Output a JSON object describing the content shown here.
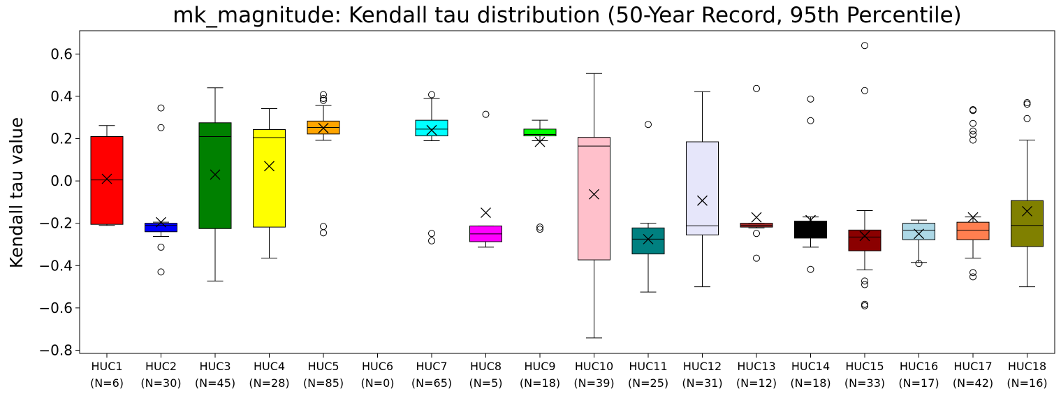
{
  "chart_data": {
    "type": "box",
    "title": "mk_magnitude: Kendall tau distribution (50-Year Record, 95th Percentile)",
    "xlabel": "",
    "ylabel": "Kendall tau value",
    "ylim": [
      -0.815,
      0.71
    ],
    "yticks": [
      -0.8,
      -0.6,
      -0.4,
      -0.2,
      0.0,
      0.2,
      0.4,
      0.6
    ],
    "ytick_labels": [
      "−0.8",
      "−0.6",
      "−0.4",
      "−0.2",
      "0.0",
      "0.2",
      "0.4",
      "0.6"
    ],
    "mean_marker": "×",
    "grid": false,
    "legend": "none",
    "categories": [
      "HUC1",
      "HUC2",
      "HUC3",
      "HUC4",
      "HUC5",
      "HUC6",
      "HUC7",
      "HUC8",
      "HUC9",
      "HUC10",
      "HUC11",
      "HUC12",
      "HUC13",
      "HUC14",
      "HUC15",
      "HUC16",
      "HUC17",
      "HUC18"
    ],
    "counts": [
      "(N=6)",
      "(N=30)",
      "(N=45)",
      "(N=28)",
      "(N=85)",
      "(N=0)",
      "(N=65)",
      "(N=5)",
      "(N=18)",
      "(N=39)",
      "(N=25)",
      "(N=31)",
      "(N=12)",
      "(N=18)",
      "(N=33)",
      "(N=17)",
      "(N=42)",
      "(N=16)"
    ],
    "boxes": [
      {
        "color": "#ff0000",
        "whislo": -0.21,
        "q1": -0.205,
        "med": 0.005,
        "q3": 0.21,
        "whishi": 0.262,
        "mean": 0.01,
        "fliers": []
      },
      {
        "color": "#0000ff",
        "whislo": -0.262,
        "q1": -0.24,
        "med": -0.21,
        "q3": -0.2,
        "whishi": -0.195,
        "mean": -0.195,
        "fliers": [
          0.345,
          0.252,
          -0.313,
          -0.43
        ]
      },
      {
        "color": "#008000",
        "whislo": -0.473,
        "q1": -0.225,
        "med": 0.21,
        "q3": 0.275,
        "whishi": 0.44,
        "mean": 0.03,
        "fliers": []
      },
      {
        "color": "#ffff00",
        "whislo": -0.365,
        "q1": -0.218,
        "med": 0.205,
        "q3": 0.243,
        "whishi": 0.342,
        "mean": 0.07,
        "fliers": []
      },
      {
        "color": "#ffa500",
        "whislo": 0.192,
        "q1": 0.222,
        "med": 0.253,
        "q3": 0.283,
        "whishi": 0.357,
        "mean": 0.25,
        "fliers": [
          0.408,
          0.39,
          0.381,
          -0.215,
          -0.245
        ]
      },
      null,
      {
        "color": "#00ffff",
        "whislo": 0.19,
        "q1": 0.213,
        "med": 0.245,
        "q3": 0.287,
        "whishi": 0.39,
        "mean": 0.24,
        "fliers": [
          0.408,
          -0.248,
          -0.283
        ]
      },
      {
        "color": "#ff00ff",
        "whislo": -0.313,
        "q1": -0.287,
        "med": -0.25,
        "q3": -0.213,
        "whishi": -0.213,
        "mean": -0.15,
        "fliers": [
          0.315
        ]
      },
      {
        "color": "#00ff00",
        "whislo": 0.19,
        "q1": 0.213,
        "med": 0.22,
        "q3": 0.245,
        "whishi": 0.287,
        "mean": 0.185,
        "fliers": [
          -0.218,
          -0.228
        ]
      },
      {
        "color": "#ffc0cb",
        "whislo": -0.742,
        "q1": -0.373,
        "med": 0.165,
        "q3": 0.206,
        "whishi": 0.508,
        "mean": -0.063,
        "fliers": []
      },
      {
        "color": "#008080",
        "whislo": -0.525,
        "q1": -0.345,
        "med": -0.275,
        "q3": -0.222,
        "whishi": -0.2,
        "mean": -0.275,
        "fliers": [
          0.267
        ]
      },
      {
        "color": "#e6e6fa",
        "whislo": -0.5,
        "q1": -0.255,
        "med": -0.212,
        "q3": 0.185,
        "whishi": 0.422,
        "mean": -0.093,
        "fliers": []
      },
      {
        "color": "#a52a2a",
        "whislo": -0.222,
        "q1": -0.218,
        "med": -0.21,
        "q3": -0.2,
        "whishi": -0.2,
        "mean": -0.172,
        "fliers": [
          0.437,
          -0.248,
          -0.365
        ]
      },
      {
        "color": "#000000",
        "whislo": -0.313,
        "q1": -0.27,
        "med": -0.24,
        "q3": -0.19,
        "whishi": -0.17,
        "mean": -0.185,
        "fliers": [
          0.387,
          0.285,
          -0.418
        ]
      },
      {
        "color": "#8b0000",
        "whislo": -0.42,
        "q1": -0.33,
        "med": -0.265,
        "q3": -0.232,
        "whishi": -0.14,
        "mean": -0.26,
        "fliers": [
          0.64,
          0.427,
          -0.473,
          -0.49,
          -0.583,
          -0.59
        ]
      },
      {
        "color": "#add8e6",
        "whislo": -0.385,
        "q1": -0.278,
        "med": -0.233,
        "q3": -0.2,
        "whishi": -0.185,
        "mean": -0.25,
        "fliers": [
          -0.39
        ]
      },
      {
        "color": "#ff7f50",
        "whislo": -0.365,
        "q1": -0.278,
        "med": -0.233,
        "q3": -0.195,
        "whishi": -0.17,
        "mean": -0.172,
        "fliers": [
          0.337,
          0.333,
          0.272,
          0.236,
          0.22,
          0.193,
          -0.433,
          -0.453
        ]
      },
      {
        "color": "#808000",
        "whislo": -0.5,
        "q1": -0.31,
        "med": -0.21,
        "q3": -0.093,
        "whishi": 0.193,
        "mean": -0.143,
        "fliers": [
          0.37,
          0.363,
          0.295
        ]
      }
    ]
  }
}
